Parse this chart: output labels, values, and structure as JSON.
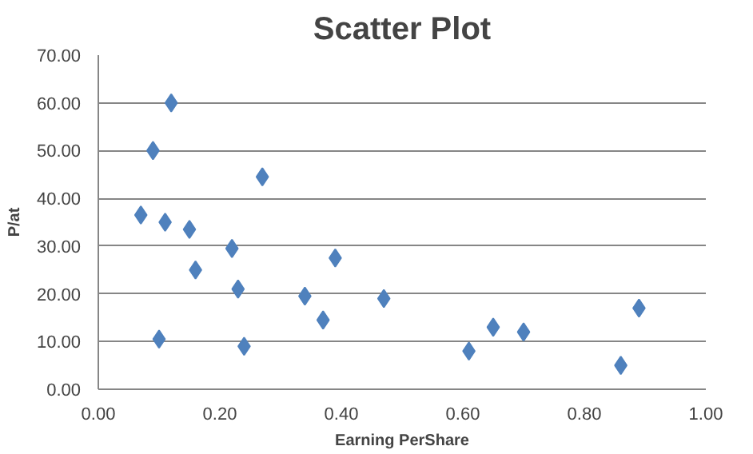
{
  "chart_data": {
    "type": "scatter",
    "title": "Scatter Plot",
    "xlabel": "Earning PerShare",
    "ylabel": "P/at",
    "x": [
      0.07,
      0.09,
      0.1,
      0.11,
      0.12,
      0.15,
      0.16,
      0.22,
      0.23,
      0.24,
      0.27,
      0.34,
      0.37,
      0.39,
      0.47,
      0.61,
      0.65,
      0.7,
      0.86,
      0.89
    ],
    "series": [
      {
        "color": "#4f81bd",
        "values": [
          36.5,
          50,
          10.5,
          35,
          60,
          33.5,
          25,
          29.5,
          21,
          9,
          44.5,
          19.5,
          14.5,
          27.5,
          19,
          8,
          13,
          12,
          5,
          17
        ]
      }
    ],
    "xlim": [
      0,
      1
    ],
    "ylim": [
      0,
      70
    ],
    "xticks": [
      {
        "value": 0,
        "label": "0.00"
      },
      {
        "value": 0.2,
        "label": "0.20"
      },
      {
        "value": 0.4,
        "label": "0.40"
      },
      {
        "value": 0.6,
        "label": "0.60"
      },
      {
        "value": 0.8,
        "label": "0.80"
      },
      {
        "value": 1,
        "label": "1.00"
      }
    ],
    "yticks": [
      {
        "value": 0,
        "label": "0.00"
      },
      {
        "value": 10,
        "label": "10.00"
      },
      {
        "value": 20,
        "label": "20.00"
      },
      {
        "value": 30,
        "label": "30.00"
      },
      {
        "value": 40,
        "label": "40.00"
      },
      {
        "value": 50,
        "label": "50.00"
      },
      {
        "value": 60,
        "label": "60.00"
      },
      {
        "value": 70,
        "label": "70.00"
      }
    ],
    "grid": "y",
    "marker": "diamond"
  }
}
